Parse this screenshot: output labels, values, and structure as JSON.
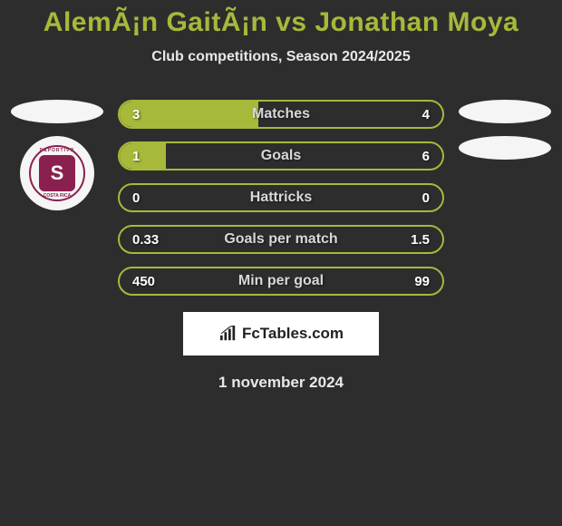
{
  "title": "AlemÃ¡n GaitÃ¡n vs Jonathan Moya",
  "subtitle": "Club competitions, Season 2024/2025",
  "accent_color": "#a8b83a",
  "background_color": "#2d2d2d",
  "ellipse_color": "#f5f5f5",
  "badge_color": "#8a2050",
  "badge_letter": "S",
  "badge_top_text": "DEPORTIVO",
  "badge_bot_text": "COSTA RICA",
  "stats": [
    {
      "label": "Matches",
      "left_val": "3",
      "right_val": "4",
      "left_pct": 42.9,
      "right_pct": 0
    },
    {
      "label": "Goals",
      "left_val": "1",
      "right_val": "6",
      "left_pct": 14.3,
      "right_pct": 0
    },
    {
      "label": "Hattricks",
      "left_val": "0",
      "right_val": "0",
      "left_pct": 0,
      "right_pct": 0
    },
    {
      "label": "Goals per match",
      "left_val": "0.33",
      "right_val": "1.5",
      "left_pct": 0,
      "right_pct": 0
    },
    {
      "label": "Min per goal",
      "left_val": "450",
      "right_val": "99",
      "left_pct": 0,
      "right_pct": 0
    }
  ],
  "brand": "FcTables.com",
  "date": "1 november 2024"
}
